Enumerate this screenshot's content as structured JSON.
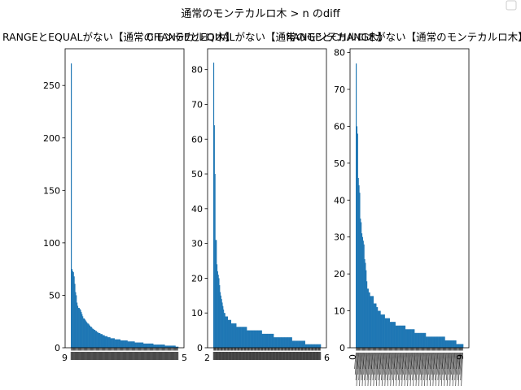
{
  "figure": {
    "suptitle": "通常のモンテカルロ木 > n のdiff",
    "legend_visible": true
  },
  "chart_data": [
    {
      "type": "bar",
      "title": "RANGEとEQUALがない【通常のモンテカルロ木】",
      "bar_color": "#1f77b4",
      "ylim": [
        0,
        285
      ],
      "yticks": [
        0,
        50,
        100,
        150,
        200,
        250
      ],
      "values": [
        271,
        75,
        73,
        72,
        68,
        61,
        53,
        50,
        43,
        40,
        38,
        38,
        37,
        36,
        34,
        32,
        30,
        28,
        28,
        27,
        26,
        25,
        24,
        23,
        23,
        22,
        21,
        20,
        20,
        19,
        18,
        18,
        17,
        17,
        16,
        16,
        15,
        15,
        14,
        14,
        14,
        13,
        13,
        13,
        12,
        12,
        12,
        11,
        11,
        11,
        11,
        10,
        10,
        10,
        10,
        9,
        9,
        9,
        9,
        9,
        9,
        8,
        8,
        8,
        8,
        8,
        8,
        8,
        8,
        7,
        7,
        7,
        7,
        7,
        7,
        7,
        7,
        7,
        7,
        6,
        6,
        6,
        6,
        6,
        6,
        6,
        6,
        6,
        6,
        5,
        5,
        5,
        5,
        5,
        5,
        5,
        5,
        5,
        5,
        5,
        5,
        4,
        4,
        4,
        4,
        4,
        4,
        4,
        4,
        4,
        4,
        4,
        4,
        4,
        4,
        3,
        3,
        3,
        3,
        3,
        3,
        3,
        3,
        3,
        3,
        3,
        3,
        3,
        3,
        3,
        3,
        2,
        2,
        2,
        2,
        2,
        2,
        2,
        2,
        2,
        2,
        2,
        2,
        2,
        2,
        2,
        1,
        1,
        1,
        1
      ],
      "xtick_first": "9",
      "xtick_last": "5"
    },
    {
      "type": "bar",
      "title": "CHANGEとEQUALがない【通常のモンテカルロ木】",
      "bar_color": "#1f77b4",
      "ylim": [
        0,
        86
      ],
      "yticks": [
        0,
        10,
        20,
        30,
        40,
        50,
        60,
        70,
        80
      ],
      "values": [
        82,
        64,
        50,
        31,
        31,
        24,
        22,
        21,
        20,
        18,
        16,
        15,
        14,
        13,
        12,
        11,
        10,
        10,
        9,
        9,
        9,
        9,
        8,
        8,
        8,
        8,
        8,
        7,
        7,
        7,
        7,
        7,
        7,
        7,
        7,
        6,
        6,
        6,
        6,
        6,
        6,
        6,
        6,
        6,
        6,
        6,
        6,
        6,
        6,
        6,
        6,
        5,
        5,
        5,
        5,
        5,
        5,
        5,
        5,
        5,
        5,
        5,
        5,
        5,
        5,
        5,
        5,
        5,
        5,
        5,
        5,
        5,
        5,
        5,
        4,
        4,
        4,
        4,
        4,
        4,
        4,
        4,
        4,
        4,
        4,
        4,
        4,
        4,
        4,
        4,
        4,
        4,
        3,
        3,
        3,
        3,
        3,
        3,
        3,
        3,
        3,
        3,
        3,
        3,
        3,
        3,
        3,
        3,
        3,
        3,
        3,
        3,
        3,
        3,
        3,
        3,
        3,
        3,
        3,
        3,
        2,
        2,
        2,
        2,
        2,
        2,
        2,
        2,
        2,
        2,
        2,
        2,
        2,
        2,
        2,
        2,
        2,
        2,
        2,
        2,
        1,
        1,
        1,
        1,
        1,
        1,
        1,
        1,
        1,
        1,
        1,
        1,
        1,
        1,
        1,
        1,
        1,
        1,
        1,
        1,
        1,
        1,
        1,
        1
      ],
      "xtick_first": "2",
      "xtick_last": "6"
    },
    {
      "type": "bar",
      "title": "RANGEとCHANGEがない【通常のモンテカルロ木】",
      "bar_color": "#1f77b4",
      "ylim": [
        0,
        81
      ],
      "yticks": [
        0,
        10,
        20,
        30,
        40,
        50,
        60,
        70,
        80
      ],
      "values": [
        77,
        60,
        58,
        46,
        44,
        42,
        35,
        34,
        31,
        30,
        29,
        28,
        24,
        23,
        21,
        18,
        16,
        16,
        15,
        15,
        14,
        14,
        14,
        14,
        14,
        12,
        12,
        12,
        12,
        11,
        11,
        10,
        10,
        10,
        10,
        9,
        9,
        9,
        9,
        9,
        9,
        8,
        8,
        8,
        8,
        8,
        8,
        8,
        7,
        7,
        7,
        7,
        7,
        7,
        7,
        7,
        6,
        6,
        6,
        6,
        6,
        6,
        6,
        6,
        6,
        6,
        6,
        6,
        6,
        6,
        5,
        5,
        5,
        5,
        5,
        5,
        5,
        5,
        5,
        5,
        5,
        5,
        5,
        4,
        4,
        4,
        4,
        4,
        4,
        4,
        4,
        4,
        4,
        4,
        4,
        4,
        4,
        4,
        4,
        3,
        3,
        3,
        3,
        3,
        3,
        3,
        3,
        3,
        3,
        3,
        3,
        3,
        3,
        3,
        3,
        3,
        3,
        3,
        3,
        3,
        3,
        3,
        3,
        3,
        3,
        3,
        2,
        2,
        2,
        2,
        2,
        2,
        2,
        2,
        2,
        2,
        2,
        2,
        2,
        2,
        2,
        2,
        1,
        1,
        1,
        1,
        1,
        1,
        1,
        1,
        1,
        1
      ],
      "xtick_first": "0",
      "xtick_last": "9"
    }
  ]
}
